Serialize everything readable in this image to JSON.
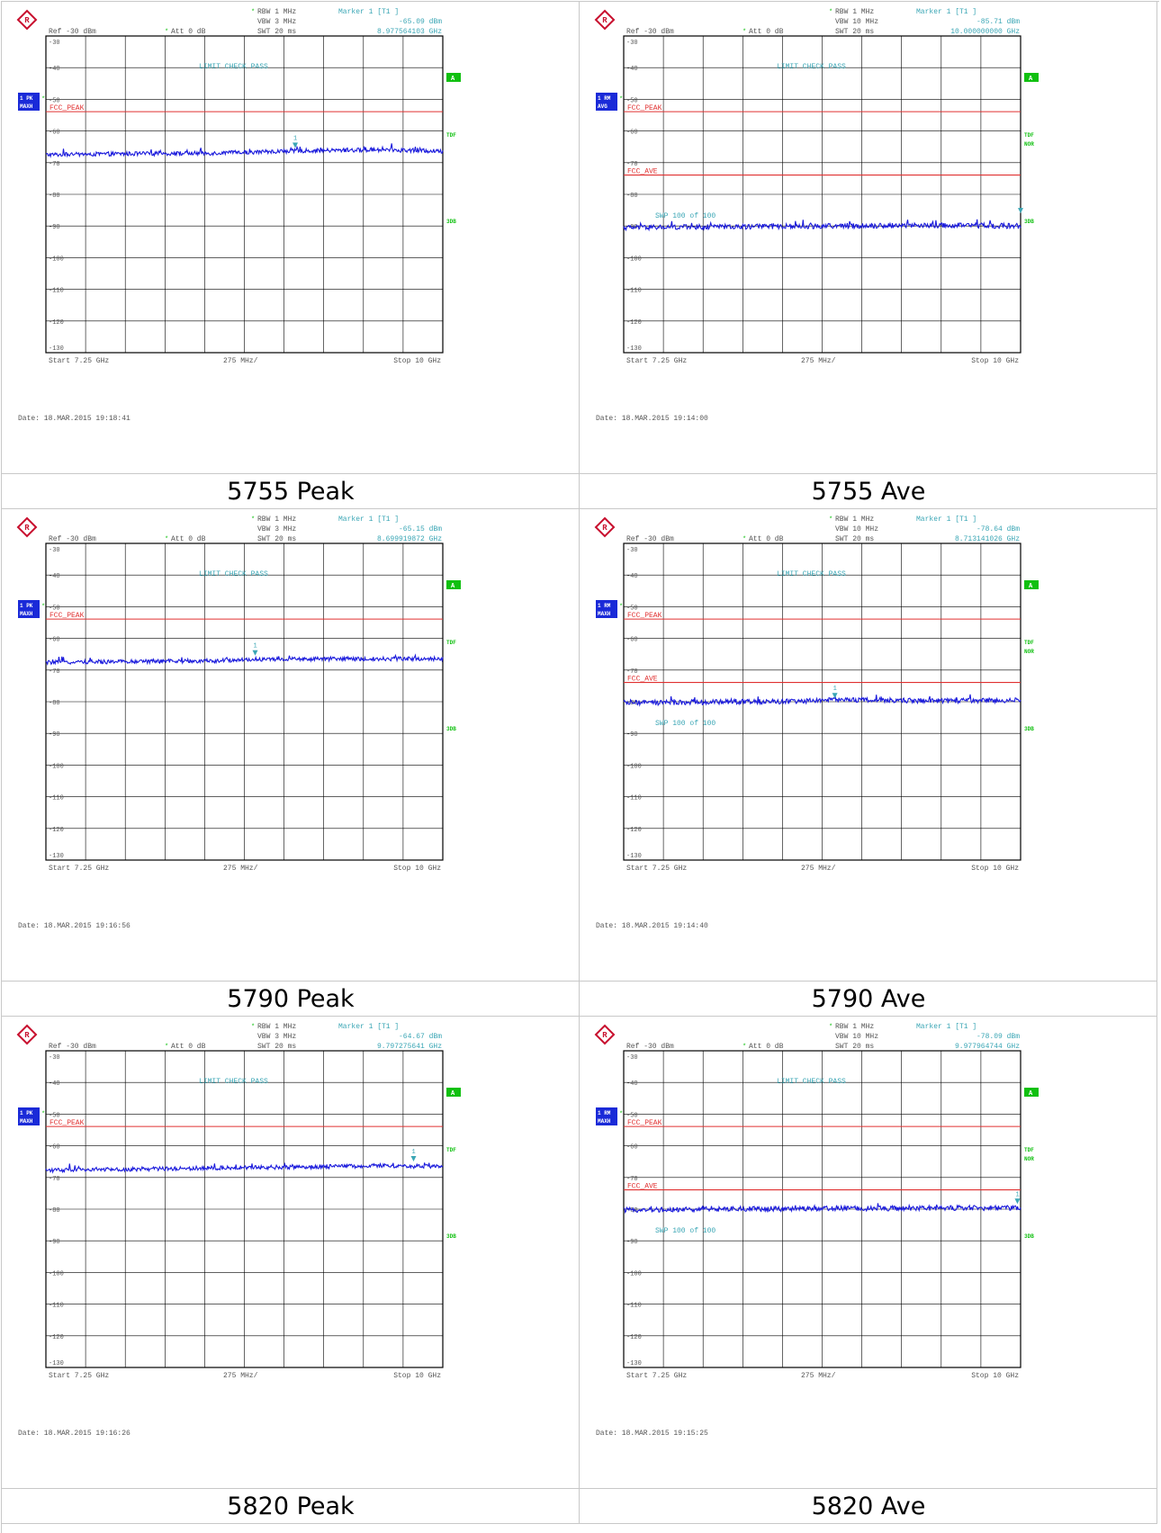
{
  "colors": {
    "trace": "#1a1adc",
    "limit": "#e03030",
    "cyan": "#3aa6b5",
    "green": "#10c010",
    "badge": "#1a2ad8",
    "grid": "#000000",
    "text": "#555555"
  },
  "icons": {
    "logo": "rohde-schwarz-logo-icon",
    "marker": "marker-triangle-icon"
  },
  "panels": [
    {
      "caption": "5755 Peak",
      "header": {
        "rbw": "RBW 1 MHz",
        "vbw": "VBW 3 MHz",
        "swt": "SWT 20 ms",
        "ref": "Ref -30 dBm",
        "att": "Att  0 dB",
        "marker_title": "Marker 1 [T1 ]",
        "marker_level": "-65.09 dBm",
        "marker_freq": "8.977564103 GHz"
      },
      "badge": {
        "line1": "1 PK",
        "line2": "MAXH"
      },
      "limit_check": "LIMIT CHECK   PASS",
      "side_labels": {
        "a": "A",
        "tdf": "TDF",
        "nor": "",
        "threedb": "3DB"
      },
      "swp": "",
      "footer": {
        "start": "Start  7.25 GHz",
        "span": "275 MHz/",
        "stop": "Stop  10 GHz",
        "date": "Date: 18.MAR.2015  19:18:41"
      },
      "marker_label": "1"
    },
    {
      "caption": "5755 Ave",
      "header": {
        "rbw": "RBW 1 MHz",
        "vbw": "VBW 10 MHz",
        "swt": "SWT 20 ms",
        "ref": "Ref -30 dBm",
        "att": "Att  0 dB",
        "marker_title": "Marker 1 [T1 ]",
        "marker_level": "-85.71 dBm",
        "marker_freq": "10.000000000 GHz"
      },
      "badge": {
        "line1": "1 RM",
        "line2": "AVG"
      },
      "limit_check": "LIMIT CHECK   PASS",
      "side_labels": {
        "a": "A",
        "tdf": "TDF",
        "nor": "NOR",
        "threedb": "3DB"
      },
      "swp": "SWP   100 of   100",
      "footer": {
        "start": "Start  7.25 GHz",
        "span": "275 MHz/",
        "stop": "Stop  10 GHz",
        "date": "Date: 18.MAR.2015  19:14:00"
      },
      "marker_label": ""
    },
    {
      "caption": "5790 Peak",
      "header": {
        "rbw": "RBW 1 MHz",
        "vbw": "VBW 3 MHz",
        "swt": "SWT 20 ms",
        "ref": "Ref -30 dBm",
        "att": "Att  0 dB",
        "marker_title": "Marker 1 [T1 ]",
        "marker_level": "-65.15 dBm",
        "marker_freq": "8.699919872 GHz"
      },
      "badge": {
        "line1": "1 PK",
        "line2": "MAXH"
      },
      "limit_check": "LIMIT CHECK   PASS",
      "side_labels": {
        "a": "A",
        "tdf": "TDF",
        "nor": "",
        "threedb": "3DB"
      },
      "swp": "",
      "footer": {
        "start": "Start  7.25 GHz",
        "span": "275 MHz/",
        "stop": "Stop  10 GHz",
        "date": "Date: 18.MAR.2015  19:16:56"
      },
      "marker_label": "1"
    },
    {
      "caption": "5790 Ave",
      "header": {
        "rbw": "RBW 1 MHz",
        "vbw": "VBW 10 MHz",
        "swt": "SWT 20 ms",
        "ref": "Ref -30 dBm",
        "att": "Att  0 dB",
        "marker_title": "Marker 1 [T1 ]",
        "marker_level": "-78.64 dBm",
        "marker_freq": "8.713141026 GHz"
      },
      "badge": {
        "line1": "1 RM",
        "line2": "MAXH"
      },
      "limit_check": "LIMIT CHECK   PASS",
      "side_labels": {
        "a": "A",
        "tdf": "TDF",
        "nor": "NOR",
        "threedb": "3DB"
      },
      "swp": "SWP   100 of   100",
      "footer": {
        "start": "Start  7.25 GHz",
        "span": "275 MHz/",
        "stop": "Stop  10 GHz",
        "date": "Date: 18.MAR.2015  19:14:40"
      },
      "marker_label": "1"
    },
    {
      "caption": "5820 Peak",
      "header": {
        "rbw": "RBW 1 MHz",
        "vbw": "VBW 3 MHz",
        "swt": "SWT 20 ms",
        "ref": "Ref -30 dBm",
        "att": "Att  0 dB",
        "marker_title": "Marker 1 [T1 ]",
        "marker_level": "-64.67 dBm",
        "marker_freq": "9.797275641 GHz"
      },
      "badge": {
        "line1": "1 PK",
        "line2": "MAXH"
      },
      "limit_check": "LIMIT CHECK   PASS",
      "side_labels": {
        "a": "A",
        "tdf": "TDF",
        "nor": "",
        "threedb": "3DB"
      },
      "swp": "",
      "footer": {
        "start": "Start  7.25 GHz",
        "span": "275 MHz/",
        "stop": "Stop  10 GHz",
        "date": "Date: 18.MAR.2015  19:16:26"
      },
      "marker_label": "1"
    },
    {
      "caption": "5820 Ave",
      "header": {
        "rbw": "RBW 1 MHz",
        "vbw": "VBW 10 MHz",
        "swt": "SWT 20 ms",
        "ref": "Ref -30 dBm",
        "att": "Att  0 dB",
        "marker_title": "Marker 1 [T1 ]",
        "marker_level": "-78.09 dBm",
        "marker_freq": "9.977964744 GHz"
      },
      "badge": {
        "line1": "1 RM",
        "line2": "MAXH"
      },
      "limit_check": "LIMIT CHECK   PASS",
      "side_labels": {
        "a": "A",
        "tdf": "TDF",
        "nor": "NOR",
        "threedb": "3DB"
      },
      "swp": "SWP   100 of   100",
      "footer": {
        "start": "Start  7.25 GHz",
        "span": "275 MHz/",
        "stop": "Stop  10 GHz",
        "date": "Date: 18.MAR.2015  19:15:25"
      },
      "marker_label": "1"
    }
  ],
  "chart_data": [
    {
      "type": "line",
      "title": "5755 Peak",
      "xlabel": "",
      "ylabel": "",
      "xlim": [
        7.25,
        10
      ],
      "ylim": [
        -130,
        -30
      ],
      "yticks": [
        "-30",
        "-40",
        "-50",
        "-60",
        "-70",
        "-80",
        "-90",
        "-100",
        "-110",
        "-120",
        "-130"
      ],
      "grid": true,
      "limits": [
        {
          "name": "FCC_PEAK",
          "value": -53.9
        }
      ],
      "marker": {
        "x": 8.977564103,
        "y": -65.09
      },
      "series": [
        {
          "x": [
            7.25,
            7.8,
            8.4,
            8.98,
            9.6,
            10.0
          ],
          "values": [
            -67.5,
            -67.2,
            -67.0,
            -66.3,
            -65.9,
            -66.4
          ]
        }
      ]
    },
    {
      "type": "line",
      "title": "5755 Ave",
      "xlabel": "",
      "ylabel": "",
      "xlim": [
        7.25,
        10
      ],
      "ylim": [
        -130,
        -30
      ],
      "yticks": [
        "-30",
        "-40",
        "-50",
        "-60",
        "-70",
        "-80",
        "-90",
        "-100",
        "-110",
        "-120",
        "-130"
      ],
      "grid": true,
      "limits": [
        {
          "name": "FCC_PEAK",
          "value": -53.9
        },
        {
          "name": "FCC_AVE",
          "value": -73.9
        }
      ],
      "marker": {
        "x": 10.0,
        "y": -85.71
      },
      "series": [
        {
          "x": [
            7.25,
            7.8,
            8.4,
            9.0,
            9.6,
            9.98
          ],
          "values": [
            -90.5,
            -90.3,
            -90.1,
            -89.9,
            -89.8,
            -90.0
          ]
        }
      ]
    },
    {
      "type": "line",
      "title": "5790 Peak",
      "xlabel": "",
      "ylabel": "",
      "xlim": [
        7.25,
        10
      ],
      "ylim": [
        -130,
        -30
      ],
      "yticks": [
        "-30",
        "-40",
        "-50",
        "-60",
        "-70",
        "-80",
        "-90",
        "-100",
        "-110",
        "-120",
        "-130"
      ],
      "grid": true,
      "limits": [
        {
          "name": "FCC_PEAK",
          "value": -53.9
        }
      ],
      "marker": {
        "x": 8.699919872,
        "y": -65.15
      },
      "series": [
        {
          "x": [
            7.25,
            7.8,
            8.4,
            8.7,
            9.4,
            10.0
          ],
          "values": [
            -67.6,
            -67.3,
            -67.1,
            -66.6,
            -66.5,
            -66.4
          ]
        }
      ]
    },
    {
      "type": "line",
      "title": "5790 Ave",
      "xlabel": "",
      "ylabel": "",
      "xlim": [
        7.25,
        10
      ],
      "ylim": [
        -130,
        -30
      ],
      "yticks": [
        "-30",
        "-40",
        "-50",
        "-60",
        "-70",
        "-80",
        "-90",
        "-100",
        "-110",
        "-120",
        "-130"
      ],
      "grid": true,
      "limits": [
        {
          "name": "FCC_PEAK",
          "value": -53.9
        },
        {
          "name": "FCC_AVE",
          "value": -73.9
        }
      ],
      "marker": {
        "x": 8.713141026,
        "y": -78.64
      },
      "series": [
        {
          "x": [
            7.25,
            7.8,
            8.4,
            8.71,
            9.4,
            10.0
          ],
          "values": [
            -80.4,
            -80.1,
            -79.9,
            -79.4,
            -79.7,
            -79.5
          ]
        }
      ]
    },
    {
      "type": "line",
      "title": "5820 Peak",
      "xlabel": "",
      "ylabel": "",
      "xlim": [
        7.25,
        10
      ],
      "ylim": [
        -130,
        -30
      ],
      "yticks": [
        "-30",
        "-40",
        "-50",
        "-60",
        "-70",
        "-80",
        "-90",
        "-100",
        "-110",
        "-120",
        "-130"
      ],
      "grid": true,
      "limits": [
        {
          "name": "FCC_PEAK",
          "value": -53.9
        }
      ],
      "marker": {
        "x": 9.797275641,
        "y": -64.67
      },
      "series": [
        {
          "x": [
            7.25,
            7.8,
            8.4,
            9.0,
            9.6,
            10.0
          ],
          "values": [
            -67.7,
            -67.4,
            -67.0,
            -66.7,
            -66.3,
            -66.6
          ]
        }
      ]
    },
    {
      "type": "line",
      "title": "5820 Ave",
      "xlabel": "",
      "ylabel": "",
      "xlim": [
        7.25,
        10
      ],
      "ylim": [
        -130,
        -30
      ],
      "yticks": [
        "-30",
        "-40",
        "-50",
        "-60",
        "-70",
        "-80",
        "-90",
        "-100",
        "-110",
        "-120",
        "-130"
      ],
      "grid": true,
      "limits": [
        {
          "name": "FCC_PEAK",
          "value": -53.9
        },
        {
          "name": "FCC_AVE",
          "value": -73.9
        }
      ],
      "marker": {
        "x": 9.977964744,
        "y": -78.09
      },
      "series": [
        {
          "x": [
            7.25,
            7.8,
            8.4,
            9.0,
            9.6,
            10.0
          ],
          "values": [
            -80.3,
            -80.0,
            -79.9,
            -79.8,
            -79.6,
            -79.7
          ]
        }
      ]
    }
  ]
}
